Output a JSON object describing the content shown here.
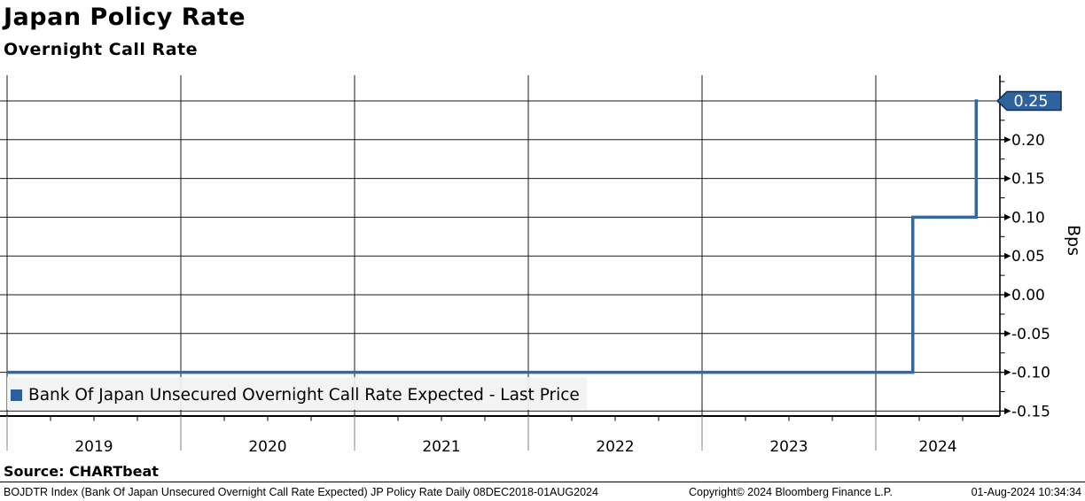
{
  "header": {
    "title": "Japan Policy Rate",
    "subtitle": "Overnight Call Rate"
  },
  "source_line": "Source: CHARTbeat",
  "footer": {
    "left": "BOJDTR Index (Bank Of Japan Unsecured Overnight Call Rate Expected) JP Policy Rate  Daily 08DEC2018-01AUG2024",
    "center": "Copyright© 2024 Bloomberg Finance L.P.",
    "right": "01-Aug-2024 10:34:34"
  },
  "chart_data": {
    "type": "line",
    "step": true,
    "title": "Japan Policy Rate",
    "subtitle": "Overnight Call Rate",
    "xlabel": "",
    "ylabel": "Bps",
    "x_range_label": "08DEC2018-01AUG2024",
    "grid": true,
    "legend_position": "bottom-left",
    "x_ticks": [
      {
        "label": "2019",
        "year": 2019
      },
      {
        "label": "2020",
        "year": 2020
      },
      {
        "label": "2021",
        "year": 2021
      },
      {
        "label": "2022",
        "year": 2022
      },
      {
        "label": "2023",
        "year": 2023
      },
      {
        "label": "2024",
        "year": 2024
      }
    ],
    "y_ticks": [
      {
        "label": "0.25",
        "value": 0.25
      },
      {
        "label": "0.20",
        "value": 0.2
      },
      {
        "label": "0.15",
        "value": 0.15
      },
      {
        "label": "0.10",
        "value": 0.1
      },
      {
        "label": "0.05",
        "value": 0.05
      },
      {
        "label": "0.00",
        "value": 0.0
      },
      {
        "label": "-0.05",
        "value": -0.05
      },
      {
        "label": "-0.10",
        "value": -0.1
      },
      {
        "label": "-0.15",
        "value": -0.15
      }
    ],
    "y_minor_step": 0.025,
    "x_minor_quarters": [
      0.25,
      0.5,
      0.75
    ],
    "ylim": [
      -0.158,
      0.282
    ],
    "xlim_years": [
      2018.94,
      2024.6
    ],
    "series": [
      {
        "name": "Bank Of Japan Unsecured Overnight Call Rate Expected - Last Price",
        "color": "#35689f",
        "points": [
          [
            2018.94,
            -0.1
          ],
          [
            2024.213,
            -0.1
          ],
          [
            2024.213,
            0.1
          ],
          [
            2024.578,
            0.1
          ],
          [
            2024.578,
            0.25
          ],
          [
            2024.588,
            0.25
          ]
        ]
      }
    ],
    "annotations": {
      "last_price_label": "0.25",
      "last_price_value": 0.25,
      "tag_fill": "#2e639e",
      "tag_border": "#0d2d52",
      "tag_text_color": "#ffffff"
    },
    "colors": {
      "grid": "#1a1a1a",
      "axis": "#000000",
      "year_divider": "#808080",
      "legend_bg": "#f2f2f2",
      "legend_swatch": "#2d609b"
    }
  }
}
